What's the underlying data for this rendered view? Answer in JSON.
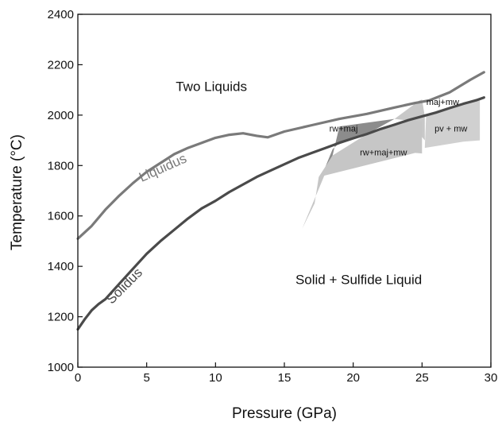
{
  "chart_data": {
    "type": "line",
    "xlabel": "Pressure (GPa)",
    "ylabel": "Temperature (°C)",
    "xlim": [
      0,
      30
    ],
    "ylim": [
      1000,
      2400
    ],
    "xticks": [
      0,
      5,
      10,
      15,
      20,
      25,
      30
    ],
    "yticks": [
      1000,
      1200,
      1400,
      1600,
      1800,
      2000,
      2200,
      2400
    ],
    "grid": false,
    "series": [
      {
        "name": "Liquidus",
        "color": "#7a7a7a",
        "points": [
          [
            0,
            1510
          ],
          [
            1,
            1560
          ],
          [
            2,
            1625
          ],
          [
            3,
            1680
          ],
          [
            4,
            1730
          ],
          [
            5,
            1775
          ],
          [
            6,
            1810
          ],
          [
            7,
            1845
          ],
          [
            8,
            1870
          ],
          [
            9,
            1890
          ],
          [
            10,
            1910
          ],
          [
            11,
            1922
          ],
          [
            12,
            1928
          ],
          [
            13,
            1918
          ],
          [
            13.8,
            1912
          ],
          [
            15,
            1935
          ],
          [
            17,
            1960
          ],
          [
            19,
            1985
          ],
          [
            21,
            2005
          ],
          [
            23,
            2030
          ],
          [
            24.5,
            2048
          ],
          [
            25.5,
            2058
          ],
          [
            27,
            2090
          ],
          [
            28.5,
            2140
          ],
          [
            29.5,
            2170
          ]
        ]
      },
      {
        "name": "Solidus",
        "color": "#4a4a4a",
        "points": [
          [
            0,
            1150
          ],
          [
            0.5,
            1190
          ],
          [
            1,
            1225
          ],
          [
            1.5,
            1250
          ],
          [
            2,
            1270
          ],
          [
            3,
            1330
          ],
          [
            4,
            1390
          ],
          [
            5,
            1450
          ],
          [
            6,
            1500
          ],
          [
            7,
            1545
          ],
          [
            8,
            1590
          ],
          [
            9,
            1630
          ],
          [
            10,
            1660
          ],
          [
            11,
            1695
          ],
          [
            12,
            1725
          ],
          [
            13,
            1755
          ],
          [
            14,
            1780
          ],
          [
            15,
            1805
          ],
          [
            16,
            1830
          ],
          [
            17,
            1850
          ],
          [
            18,
            1870
          ],
          [
            19,
            1890
          ],
          [
            20,
            1908
          ],
          [
            21,
            1925
          ],
          [
            22,
            1945
          ],
          [
            23,
            1962
          ],
          [
            24,
            1980
          ],
          [
            25,
            1995
          ],
          [
            26,
            2010
          ],
          [
            27,
            2028
          ],
          [
            28,
            2045
          ],
          [
            29,
            2060
          ],
          [
            29.5,
            2070
          ]
        ]
      }
    ],
    "regions": [
      {
        "label": "rw+maj",
        "color": "#8c8c8c",
        "polygon": [
          [
            17.8,
            1770
          ],
          [
            18.5,
            1840
          ],
          [
            19,
            1955
          ],
          [
            23,
            1985
          ],
          [
            21,
            1925
          ],
          [
            19,
            1890
          ],
          [
            18.5,
            1865
          ]
        ]
      },
      {
        "label": "maj+mw",
        "color": "#c8c8c8",
        "polygon": [
          [
            23,
            1985
          ],
          [
            24.8,
            2058
          ],
          [
            25,
            2062
          ],
          [
            25.2,
            1995
          ],
          [
            25.2,
            1900
          ],
          [
            24,
            1978
          ]
        ]
      },
      {
        "label": "rw+maj+mw",
        "color": "#c6c6c6",
        "polygon": [
          [
            16.3,
            1550
          ],
          [
            17.2,
            1650
          ],
          [
            17.5,
            1755
          ],
          [
            18.5,
            1840
          ],
          [
            21,
            1925
          ],
          [
            22,
            1945
          ],
          [
            23,
            1962
          ],
          [
            24,
            1980
          ],
          [
            25,
            1975
          ],
          [
            25,
            1848
          ],
          [
            24.5,
            1850
          ],
          [
            17.9,
            1760
          ]
        ]
      },
      {
        "label": "pv + mw",
        "color": "#d0d0d0",
        "polygon": [
          [
            25.2,
            1870
          ],
          [
            25.3,
            2000
          ],
          [
            26,
            2010
          ],
          [
            27,
            2028
          ],
          [
            28,
            2045
          ],
          [
            29,
            2062
          ],
          [
            29.2,
            2070
          ],
          [
            29.2,
            1900
          ],
          [
            28,
            1895
          ]
        ]
      }
    ],
    "annotations": [
      {
        "text": "Two Liquids",
        "x": 9.7,
        "y": 2095
      },
      {
        "text": "Solid + Sulfide Liquid",
        "x": 20.4,
        "y": 1330
      },
      {
        "text": "Liquidus",
        "x": 6.3,
        "y": 1775,
        "color": "#7a7a7a",
        "rotate": -24
      },
      {
        "text": "Solidus",
        "x": 3.6,
        "y": 1310,
        "color": "#4a4a4a",
        "rotate": -45
      },
      {
        "text": "rw+maj",
        "x": 19.3,
        "y": 1935
      },
      {
        "text": "maj+mw",
        "x": 26.5,
        "y": 2040
      },
      {
        "text": "rw+maj+mw",
        "x": 22.2,
        "y": 1840
      },
      {
        "text": "pv + mw",
        "x": 27.1,
        "y": 1935
      }
    ]
  }
}
